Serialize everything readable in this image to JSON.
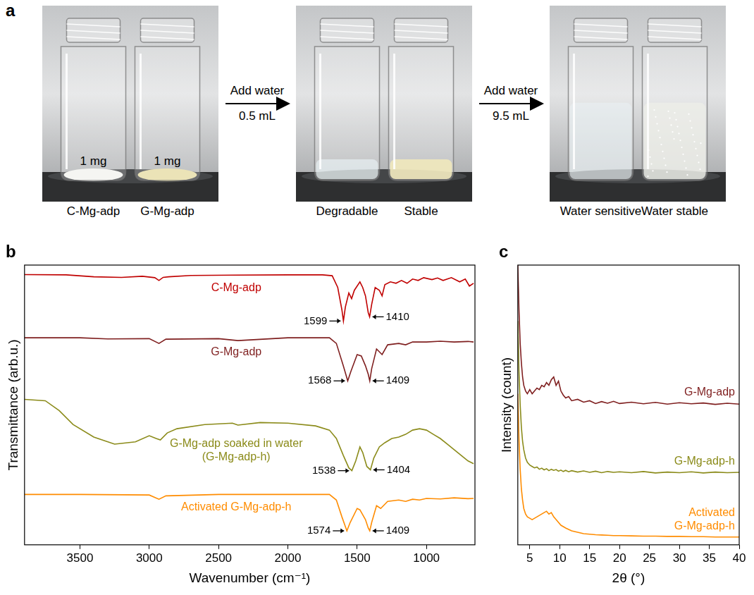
{
  "panel_a": {
    "panel_label": "a",
    "stages": [
      {
        "vials": [
          {
            "label": "C-Mg-adp",
            "amount": "1 mg"
          },
          {
            "label": "G-Mg-adp",
            "amount": "1 mg"
          }
        ]
      },
      {
        "step": {
          "text": "Add water",
          "volume": "0.5 mL"
        },
        "vials": [
          {
            "label": "Degradable"
          },
          {
            "label": "Stable"
          }
        ]
      },
      {
        "step": {
          "text": "Add water",
          "volume": "9.5 mL"
        },
        "vials": [
          {
            "label": "Water sensitive"
          },
          {
            "label": "Water stable"
          }
        ]
      }
    ]
  },
  "chart_data": [
    {
      "type": "line",
      "panel_label": "b",
      "x_label": "Wavenumber (cm⁻¹)",
      "y_label": "Transmittance (arb.u.)",
      "xlim": [
        3900,
        650
      ],
      "xticks": [
        3500,
        3000,
        2500,
        2000,
        1500,
        1000
      ],
      "ylim": [
        0,
        100
      ],
      "grid": false,
      "tick_labels": "x",
      "series": [
        {
          "name": "C-Mg-adp",
          "color": "#c00000",
          "x": [
            3900,
            3600,
            3400,
            3200,
            3050,
            2960,
            2930,
            2900,
            2860,
            2700,
            2400,
            2000,
            1750,
            1680,
            1640,
            1610,
            1599,
            1585,
            1560,
            1540,
            1520,
            1480,
            1460,
            1440,
            1420,
            1410,
            1395,
            1370,
            1340,
            1320,
            1300,
            1260,
            1220,
            1180,
            1140,
            1100,
            1060,
            1020,
            960,
            920,
            880,
            820,
            760,
            720,
            690,
            660
          ],
          "values": [
            96.6,
            96.5,
            95.8,
            95.6,
            96,
            95.5,
            94.5,
            95.6,
            95.8,
            96.3,
            96.4,
            96.5,
            96.5,
            96.2,
            92,
            84,
            80,
            85,
            90,
            88,
            91,
            94,
            92,
            89,
            83,
            81.5,
            86,
            92,
            91,
            89,
            93,
            94,
            93.5,
            94.5,
            93.5,
            95,
            94.5,
            95.5,
            94.8,
            95.4,
            94.5,
            95.5,
            94,
            95,
            92.5,
            93.5
          ],
          "peaks": [
            {
              "x": 1599,
              "y": 80
            },
            {
              "x": 1410,
              "y": 81.5
            }
          ]
        },
        {
          "name": "G-Mg-adp",
          "color": "#7f1f1f",
          "x": [
            3900,
            3500,
            3300,
            3000,
            2930,
            2880,
            2500,
            2360,
            2000,
            1700,
            1650,
            1600,
            1568,
            1545,
            1500,
            1470,
            1440,
            1420,
            1409,
            1395,
            1360,
            1320,
            1280,
            1200,
            1150,
            1100,
            1000,
            900,
            800,
            700,
            660
          ],
          "values": [
            74,
            74,
            73.6,
            73.7,
            72,
            73.5,
            73.7,
            73,
            74,
            74,
            72,
            64,
            58.6,
            62,
            68,
            67.5,
            64,
            61,
            58.6,
            63,
            70,
            68,
            71.5,
            72,
            71.5,
            72.5,
            72.5,
            72.8,
            72.5,
            72.7,
            72.5
          ],
          "peaks": [
            {
              "x": 1568,
              "y": 58.6
            },
            {
              "x": 1409,
              "y": 58.6
            }
          ]
        },
        {
          "name": "G-Mg-adp soaked in water (G-Mg-adp-h)",
          "color": "#8b8b1a",
          "x": [
            3900,
            3750,
            3650,
            3550,
            3400,
            3250,
            3100,
            3000,
            2950,
            2920,
            2870,
            2800,
            2600,
            2400,
            2360,
            2200,
            2000,
            1800,
            1700,
            1650,
            1600,
            1560,
            1538,
            1510,
            1480,
            1460,
            1430,
            1404,
            1380,
            1340,
            1300,
            1250,
            1200,
            1150,
            1100,
            1050,
            1000,
            950,
            900,
            850,
            800,
            750,
            700,
            660
          ],
          "values": [
            52,
            51.5,
            48,
            43,
            38.5,
            36,
            36.8,
            39,
            38,
            37.5,
            40,
            41.5,
            43,
            43.5,
            42.8,
            43.7,
            43.5,
            42.5,
            41,
            38,
            32,
            27.5,
            26.5,
            30,
            35,
            33,
            28,
            26.8,
            31,
            35,
            36.5,
            38,
            38.5,
            39.5,
            41,
            41.5,
            41,
            39.5,
            38,
            36,
            34,
            32,
            30,
            29
          ],
          "peaks": [
            {
              "x": 1538,
              "y": 26.5
            },
            {
              "x": 1404,
              "y": 26.8
            }
          ]
        },
        {
          "name": "Activated G-Mg-adp-h",
          "color": "#ff8c00",
          "x": [
            3900,
            3500,
            3000,
            2930,
            2880,
            2500,
            2000,
            1700,
            1650,
            1610,
            1574,
            1550,
            1500,
            1480,
            1440,
            1420,
            1409,
            1395,
            1360,
            1330,
            1280,
            1200,
            1150,
            1100,
            1050,
            1000,
            900,
            800,
            700,
            660
          ],
          "values": [
            18,
            18,
            17.8,
            16.3,
            17.5,
            18,
            18,
            18,
            16,
            10,
            5,
            8,
            13,
            12.5,
            9,
            6,
            5,
            8,
            14,
            13,
            15.5,
            16,
            15.5,
            16.3,
            16,
            16.6,
            16.4,
            16.8,
            16.5,
            16.6
          ],
          "peaks": [
            {
              "x": 1574,
              "y": 5
            },
            {
              "x": 1409,
              "y": 5
            }
          ]
        }
      ]
    },
    {
      "type": "line",
      "panel_label": "c",
      "x_label": "2θ (°)",
      "y_label": "Intensity (count)",
      "xlim": [
        3,
        40
      ],
      "xticks": [
        5,
        10,
        15,
        20,
        25,
        30,
        35,
        40
      ],
      "ylim": [
        0,
        100
      ],
      "grid": false,
      "tick_labels": "x",
      "x": [
        3,
        3.2,
        3.4,
        3.6,
        3.8,
        4,
        4.3,
        4.6,
        5,
        5.4,
        5.8,
        6.2,
        6.6,
        7,
        7.4,
        7.8,
        8.2,
        8.6,
        9,
        9.4,
        9.8,
        10.2,
        10.6,
        11,
        11.5,
        12,
        13,
        14,
        15,
        16,
        17,
        18,
        19,
        20,
        22,
        24,
        26,
        28,
        30,
        32,
        34,
        36,
        38,
        40
      ],
      "series": [
        {
          "name": "G-Mg-adp",
          "color": "#7f1f1f",
          "values": [
            100,
            84,
            72,
            65,
            60,
            57,
            55,
            54,
            55.5,
            54,
            55,
            56,
            55.5,
            57,
            56.5,
            58,
            57,
            59,
            60,
            57,
            58.5,
            55,
            53.5,
            52.5,
            53,
            51.5,
            52,
            51,
            51.5,
            50.5,
            51.2,
            50.6,
            51.3,
            50.5,
            51,
            50.4,
            50.9,
            50.3,
            50.8,
            50.4,
            50.7,
            50.2,
            50.6,
            50.3
          ]
        },
        {
          "name": "G-Mg-adp-h",
          "color": "#8b8b1a",
          "values": [
            80,
            62,
            50,
            42,
            37,
            34,
            31,
            29.5,
            28.5,
            28,
            27.5,
            27.8,
            27,
            27.4,
            26.8,
            27.2,
            26.5,
            27,
            26.6,
            26.9,
            26.3,
            26.7,
            26.2,
            26.6,
            26.1,
            26.5,
            26,
            26.4,
            25.9,
            26.3,
            25.8,
            26.2,
            25.9,
            26.1,
            25.8,
            26.2,
            25.7,
            26,
            25.8,
            26.1,
            25.7,
            26,
            25.8,
            25.9
          ]
        },
        {
          "name": "Activated G-Mg-adp-h",
          "color": "#ff8c00",
          "values": [
            54,
            38,
            27,
            20,
            16,
            13,
            11,
            10,
            9.5,
            9,
            9.5,
            10,
            10.5,
            11,
            11.5,
            12,
            11,
            11.5,
            10,
            9,
            8,
            7,
            6.5,
            6,
            5.5,
            5,
            4.5,
            4,
            3.8,
            3.6,
            3.5,
            3.4,
            3.3,
            3.3,
            3.2,
            3.1,
            3.1,
            3,
            3,
            2.9,
            2.9,
            2.8,
            2.8,
            2.8
          ]
        }
      ]
    }
  ]
}
